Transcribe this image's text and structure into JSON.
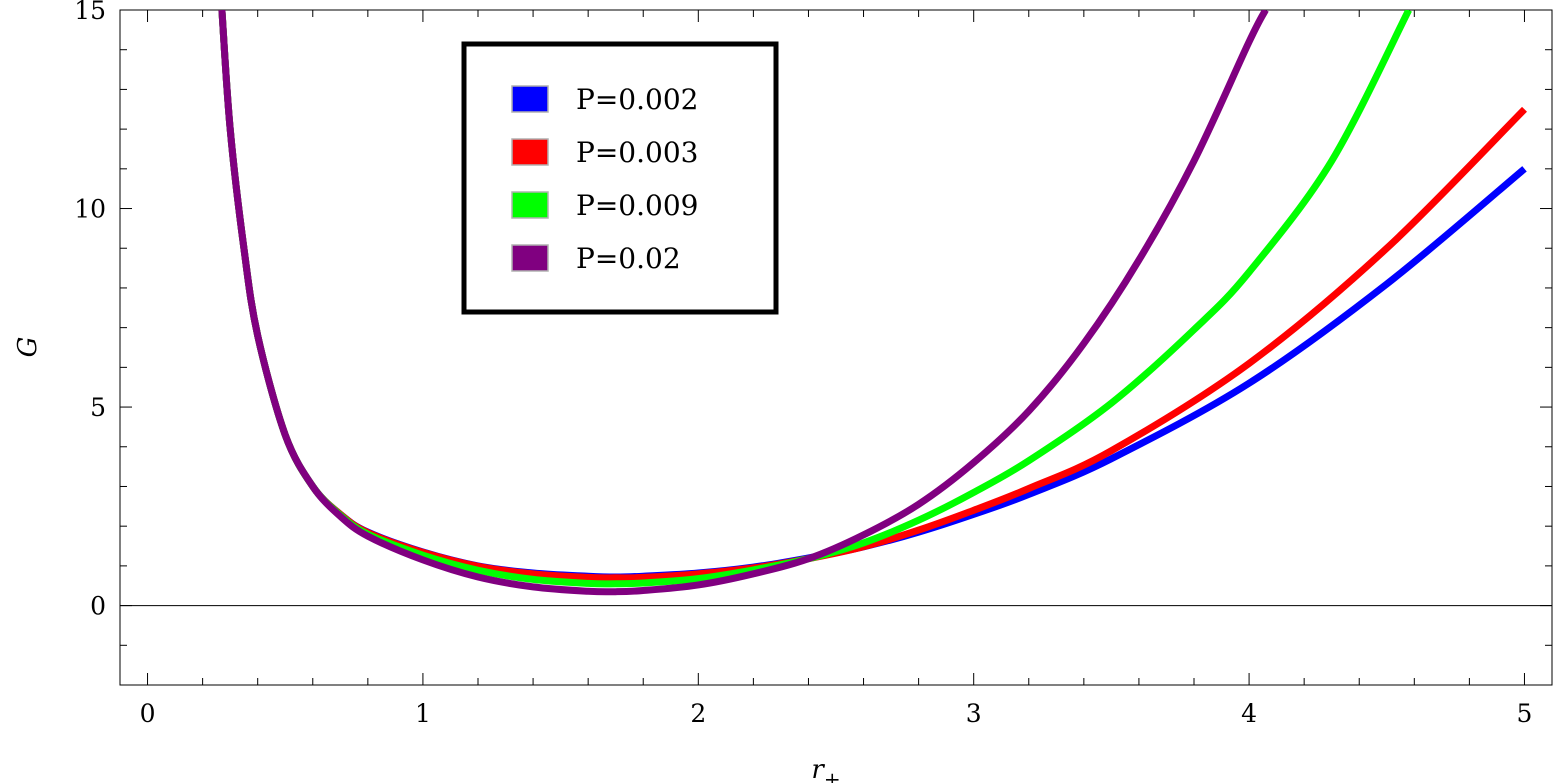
{
  "chart_data": {
    "type": "line",
    "title": "",
    "xlabel": "r",
    "xlabel_subscript": "+",
    "ylabel": "G",
    "xlim": [
      -0.1,
      5.1
    ],
    "ylim": [
      -2,
      15
    ],
    "xticks": [
      0,
      1,
      2,
      3,
      4,
      5
    ],
    "yticks": [
      0,
      5,
      10,
      15
    ],
    "legend_position": "top-left",
    "series": [
      {
        "name": "P=0.002",
        "color": "#0000ff",
        "x": [
          0.27,
          0.3,
          0.35,
          0.4,
          0.5,
          0.6,
          0.7,
          0.8,
          1.0,
          1.2,
          1.4,
          1.6,
          1.7,
          1.8,
          2.0,
          2.2,
          2.4,
          2.6,
          2.8,
          3.0,
          3.2,
          3.5,
          4.0,
          4.5,
          5.0
        ],
        "y": [
          15.0,
          12.0,
          9.0,
          6.8,
          4.3,
          3.0,
          2.3,
          1.85,
          1.35,
          1.0,
          0.82,
          0.74,
          0.72,
          0.74,
          0.82,
          0.97,
          1.2,
          1.48,
          1.85,
          2.3,
          2.8,
          3.7,
          5.6,
          8.1,
          11.0
        ]
      },
      {
        "name": "P=0.003",
        "color": "#ff0000",
        "x": [
          0.27,
          0.3,
          0.35,
          0.4,
          0.5,
          0.6,
          0.7,
          0.8,
          1.0,
          1.2,
          1.4,
          1.6,
          1.7,
          1.8,
          2.0,
          2.2,
          2.4,
          2.6,
          2.8,
          3.0,
          3.2,
          3.5,
          4.0,
          4.5,
          5.0
        ],
        "y": [
          15.0,
          12.0,
          9.0,
          6.8,
          4.3,
          3.0,
          2.3,
          1.84,
          1.34,
          0.99,
          0.8,
          0.71,
          0.7,
          0.71,
          0.8,
          0.95,
          1.18,
          1.48,
          1.9,
          2.4,
          2.95,
          3.9,
          6.1,
          9.0,
          12.5
        ]
      },
      {
        "name": "P=0.009",
        "color": "#00ff00",
        "x": [
          0.27,
          0.3,
          0.35,
          0.4,
          0.5,
          0.6,
          0.7,
          0.8,
          1.0,
          1.2,
          1.4,
          1.6,
          1.7,
          1.8,
          2.0,
          2.2,
          2.4,
          2.6,
          2.8,
          3.0,
          3.2,
          3.5,
          3.8,
          4.0,
          4.3,
          4.58
        ],
        "y": [
          15.0,
          12.0,
          9.0,
          6.8,
          4.3,
          3.0,
          2.28,
          1.8,
          1.27,
          0.89,
          0.66,
          0.56,
          0.55,
          0.57,
          0.68,
          0.9,
          1.18,
          1.58,
          2.15,
          2.85,
          3.65,
          5.1,
          6.95,
          8.4,
          11.2,
          15.0
        ]
      },
      {
        "name": "P=0.02",
        "color": "#800080",
        "x": [
          0.27,
          0.3,
          0.35,
          0.4,
          0.5,
          0.6,
          0.7,
          0.8,
          1.0,
          1.2,
          1.4,
          1.6,
          1.7,
          1.8,
          2.0,
          2.2,
          2.4,
          2.6,
          2.8,
          3.0,
          3.2,
          3.4,
          3.6,
          3.8,
          4.0,
          4.06
        ],
        "y": [
          15.0,
          12.0,
          9.0,
          6.8,
          4.3,
          3.0,
          2.25,
          1.75,
          1.15,
          0.72,
          0.47,
          0.36,
          0.35,
          0.38,
          0.52,
          0.8,
          1.18,
          1.78,
          2.55,
          3.6,
          4.9,
          6.6,
          8.7,
          11.2,
          14.2,
          15.0
        ]
      }
    ]
  }
}
